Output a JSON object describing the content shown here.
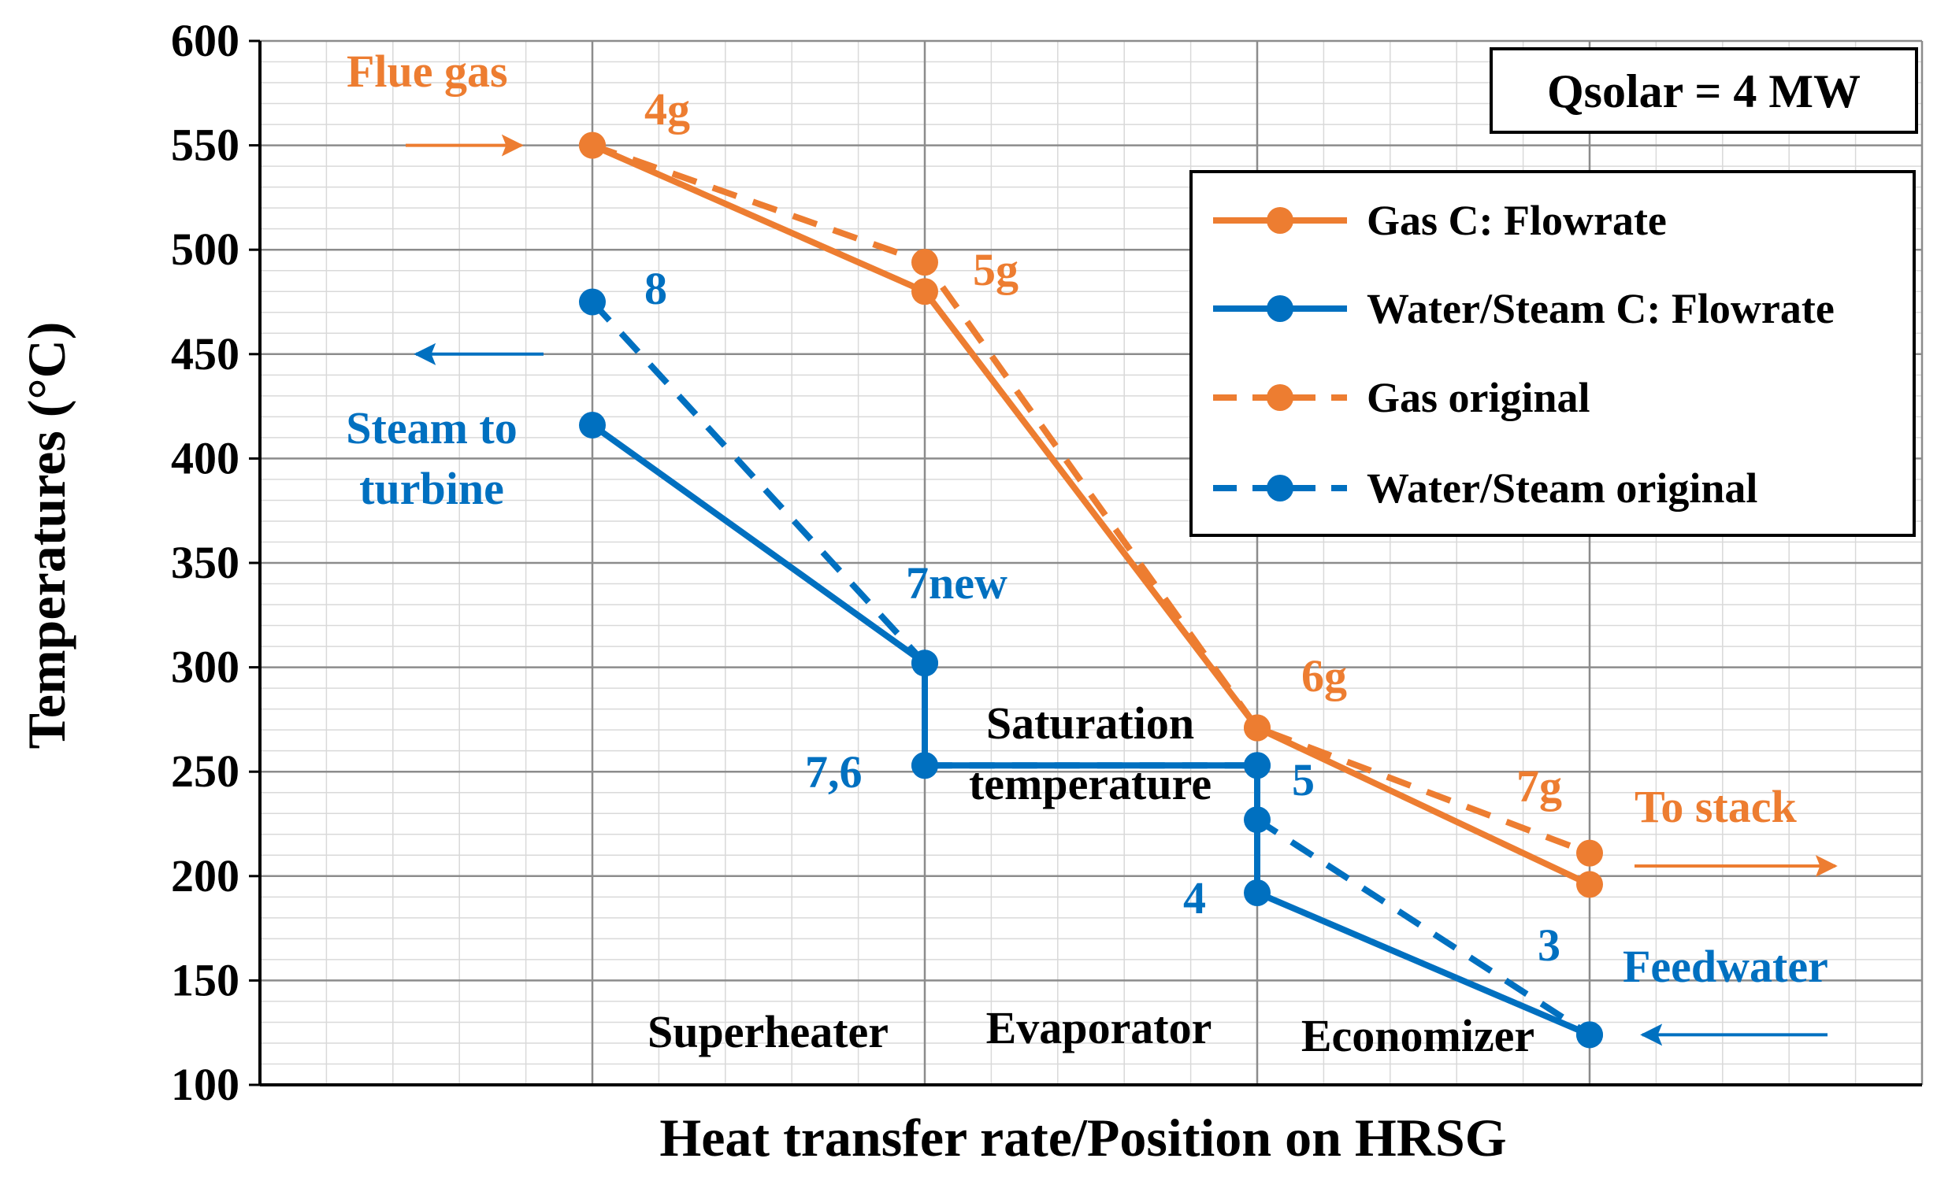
{
  "chart_data": {
    "type": "line",
    "title": "",
    "xlabel": "Heat transfer rate/Position on HRSG",
    "ylabel": "Temperatures (°C)",
    "ylim": [
      100,
      600
    ],
    "ytick_step": 50,
    "yticks": [
      "100",
      "150",
      "200",
      "250",
      "300",
      "350",
      "400",
      "450",
      "500",
      "550",
      "600"
    ],
    "xlim": [
      0,
      5
    ],
    "grid": true,
    "qsolar_label": "Qsolar = 4 MW",
    "legend_position": "top-right",
    "colors": {
      "gas": "#ED7D31",
      "water": "#0070C0",
      "text": "#000000",
      "grid": "#bfbfbf"
    },
    "series": [
      {
        "name": "Gas C: Flowrate",
        "color": "#ED7D31",
        "dash": false,
        "points": [
          [
            1,
            550
          ],
          [
            2,
            480
          ],
          [
            3,
            271
          ],
          [
            4,
            196
          ]
        ]
      },
      {
        "name": "Water/Steam C: Flowrate",
        "color": "#0070C0",
        "dash": false,
        "points": [
          [
            1,
            416
          ],
          [
            2,
            302
          ],
          [
            2,
            253
          ],
          [
            3,
            253
          ],
          [
            3,
            192
          ],
          [
            4,
            124
          ]
        ]
      },
      {
        "name": "Gas original",
        "color": "#ED7D31",
        "dash": true,
        "points": [
          [
            1,
            550
          ],
          [
            2,
            494
          ],
          [
            3,
            271
          ],
          [
            4,
            211
          ]
        ]
      },
      {
        "name": "Water/Steam original",
        "color": "#0070C0",
        "dash": true,
        "points": [
          [
            1,
            475
          ],
          [
            2,
            302
          ],
          [
            2,
            253
          ],
          [
            3,
            253
          ],
          [
            3,
            227
          ],
          [
            4,
            124
          ]
        ]
      }
    ],
    "point_labels": [
      {
        "text": "4g",
        "color": "#ED7D31"
      },
      {
        "text": "5g",
        "color": "#ED7D31"
      },
      {
        "text": "6g",
        "color": "#ED7D31"
      },
      {
        "text": "7g",
        "color": "#ED7D31"
      },
      {
        "text": "8",
        "color": "#0070C0"
      },
      {
        "text": "7new",
        "color": "#0070C0"
      },
      {
        "text": "7,6",
        "color": "#0070C0"
      },
      {
        "text": "5",
        "color": "#0070C0"
      },
      {
        "text": "4",
        "color": "#0070C0"
      },
      {
        "text": "3",
        "color": "#0070C0"
      }
    ],
    "annotations": {
      "flue_gas": "Flue gas",
      "steam_to_turbine_line1": "Steam to",
      "steam_to_turbine_line2": "turbine",
      "to_stack": "To stack",
      "feedwater": "Feedwater",
      "saturation_line1": "Saturation",
      "saturation_line2": "temperature"
    },
    "sections": [
      "Superheater",
      "Evaporator",
      "Economizer"
    ]
  }
}
